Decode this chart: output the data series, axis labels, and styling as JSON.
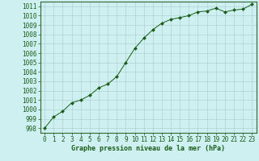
{
  "x": [
    0,
    1,
    2,
    3,
    4,
    5,
    6,
    7,
    8,
    9,
    10,
    11,
    12,
    13,
    14,
    15,
    16,
    17,
    18,
    19,
    20,
    21,
    22,
    23
  ],
  "y": [
    998.0,
    999.2,
    999.8,
    1000.7,
    1001.0,
    1001.5,
    1002.3,
    1002.7,
    1003.5,
    1005.0,
    1006.5,
    1007.6,
    1008.5,
    1009.2,
    1009.6,
    1009.8,
    1010.0,
    1010.4,
    1010.5,
    1010.8,
    1010.4,
    1010.6,
    1010.7,
    1011.2
  ],
  "ylim": [
    997.5,
    1011.5
  ],
  "yticks": [
    998,
    999,
    1000,
    1001,
    1002,
    1003,
    1004,
    1005,
    1006,
    1007,
    1008,
    1009,
    1010,
    1011
  ],
  "xlim": [
    -0.5,
    23.5
  ],
  "xticks": [
    0,
    1,
    2,
    3,
    4,
    5,
    6,
    7,
    8,
    9,
    10,
    11,
    12,
    13,
    14,
    15,
    16,
    17,
    18,
    19,
    20,
    21,
    22,
    23
  ],
  "xlabel": "Graphe pression niveau de la mer (hPa)",
  "line_color": "#1a5c1a",
  "marker_color": "#1a5c1a",
  "bg_color": "#cff0f0",
  "grid_color": "#aacccc",
  "border_color": "#336633",
  "tick_label_color": "#1a5c1a",
  "xlabel_color": "#1a5c1a",
  "xlabel_fontsize": 6.0,
  "tick_fontsize": 5.5
}
